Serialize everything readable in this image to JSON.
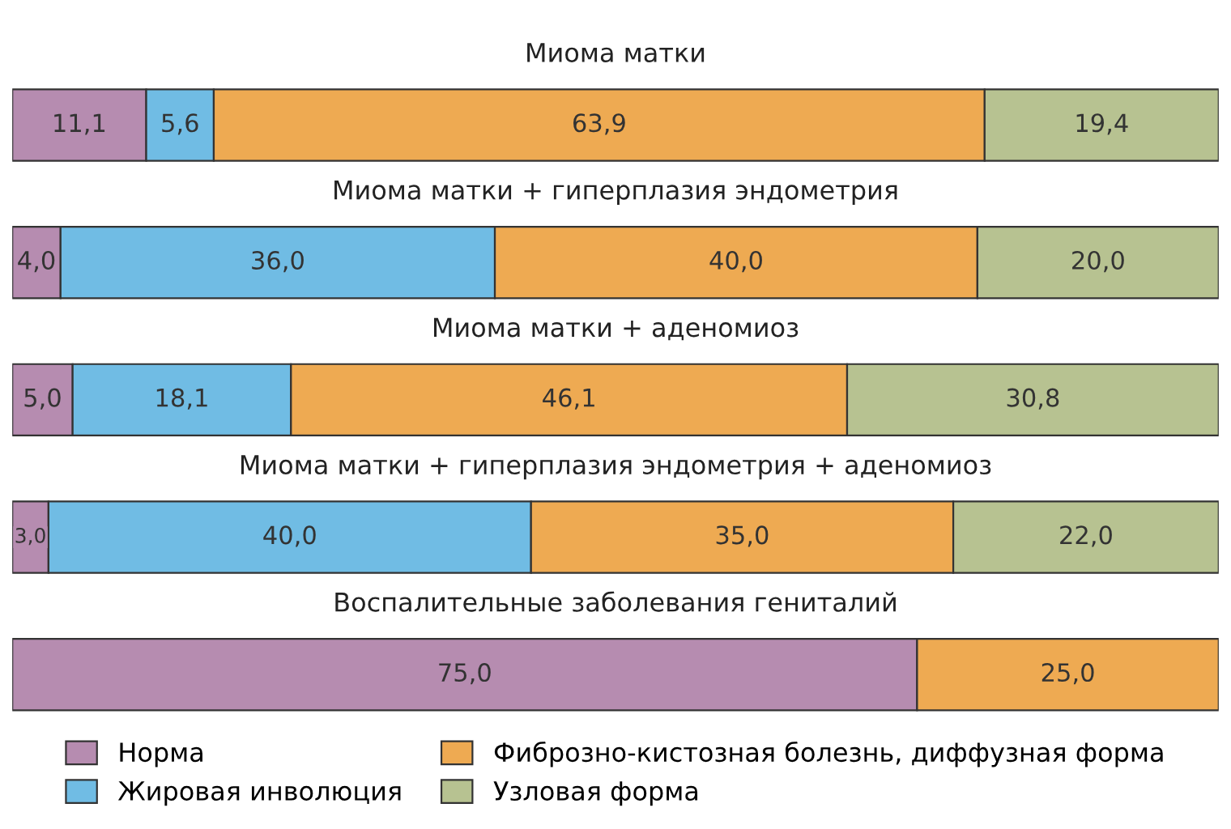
{
  "chart_data": {
    "type": "bar",
    "orientation": "horizontal",
    "stacked": true,
    "legend": "bottom",
    "categories": [
      "Миома матки",
      "Миома матки + гиперплазия эндометрия",
      "Миома матки + аденомиоз",
      "Миома матки + гиперплазия эндометрия + аденомиоз",
      "Воспалительные заболевания гениталий"
    ],
    "series": [
      {
        "name": "Норма",
        "color": "#b68cb0",
        "values": [
          11.1,
          4.0,
          5.0,
          3.0,
          75.0
        ],
        "value_labels": [
          "11,1",
          "4,0",
          "5,0",
          "3,0",
          "75,0"
        ]
      },
      {
        "name": "Жировая инволюция",
        "color": "#70bce4",
        "values": [
          5.6,
          36.0,
          18.1,
          40.0,
          null
        ],
        "value_labels": [
          "5,6",
          "36,0",
          "18,1",
          "40,0",
          null
        ]
      },
      {
        "name": "Фиброзно-кистозная болезнь, диффузная форма",
        "color": "#eeaa52",
        "values": [
          63.9,
          40.0,
          46.1,
          35.0,
          25.0
        ],
        "value_labels": [
          "63,9",
          "40,0",
          "46,1",
          "35,0",
          "25,0"
        ]
      },
      {
        "name": "Узловая форма",
        "color": "#b7c291",
        "values": [
          19.4,
          20.0,
          30.8,
          22.0,
          null
        ],
        "value_labels": [
          "19,4",
          "20,0",
          "30,8",
          "22,0",
          null
        ]
      }
    ]
  }
}
